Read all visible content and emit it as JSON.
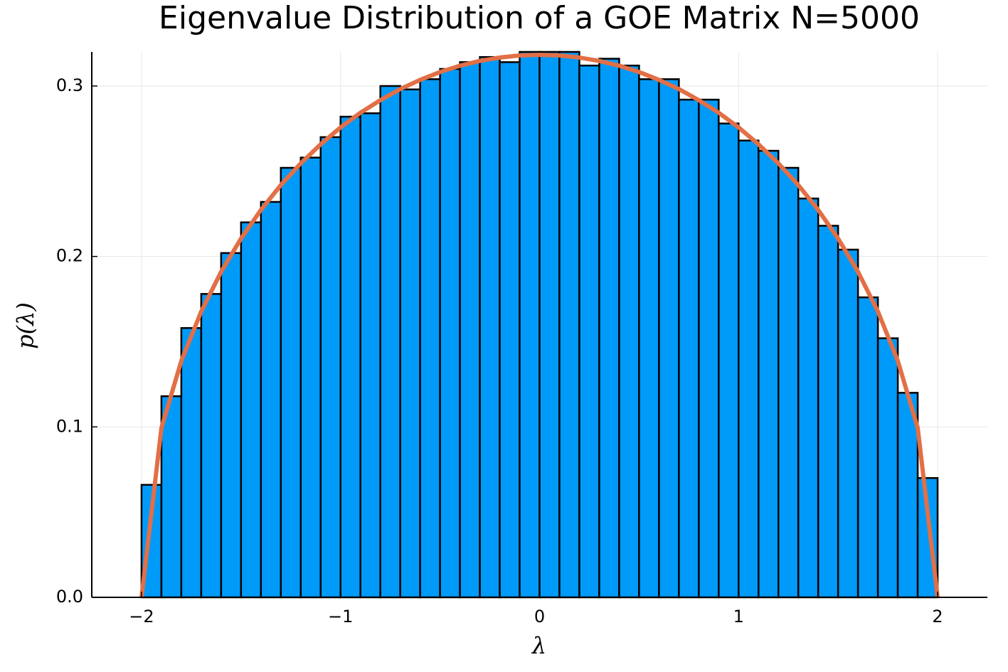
{
  "chart_data": {
    "type": "histogram",
    "title": "Eigenvalue Distribution of a GOE Matrix N=5000",
    "x_label": "λ",
    "y_label": "p(λ)",
    "bins": [
      -2,
      -1.9,
      -1.8,
      -1.7,
      -1.6,
      -1.5,
      -1.4,
      -1.3,
      -1.2,
      -1.1,
      -1,
      -0.9,
      -0.8,
      -0.7,
      -0.6,
      -0.5,
      -0.4,
      -0.3,
      -0.2,
      -0.1,
      0,
      0.1,
      0.2,
      0.3,
      0.4,
      0.5,
      0.6,
      0.7,
      0.8,
      0.9,
      1,
      1.1,
      1.2,
      1.3,
      1.4,
      1.5,
      1.6,
      1.7,
      1.8,
      1.9,
      2
    ],
    "values": [
      0.066,
      0.118,
      0.158,
      0.178,
      0.202,
      0.22,
      0.232,
      0.252,
      0.258,
      0.27,
      0.282,
      0.284,
      0.3,
      0.298,
      0.304,
      0.31,
      0.314,
      0.317,
      0.314,
      0.32,
      0.32,
      0.32,
      0.312,
      0.316,
      0.312,
      0.304,
      0.304,
      0.292,
      0.292,
      0.278,
      0.268,
      0.262,
      0.252,
      0.234,
      0.218,
      0.204,
      0.176,
      0.152,
      0.12,
      0.07
    ],
    "color": "#009af9",
    "line": {
      "color": "#e26f46",
      "x": [
        -2,
        -1.9,
        -1.8,
        -1.7,
        -1.6,
        -1.5,
        -1.4,
        -1.3,
        -1.2,
        -1.1,
        -1,
        -0.9,
        -0.8,
        -0.7,
        -0.6,
        -0.5,
        -0.4,
        -0.3,
        -0.2,
        -0.1,
        0,
        0.1,
        0.2,
        0.3,
        0.4,
        0.5,
        0.6,
        0.7,
        0.8,
        0.9,
        1,
        1.1,
        1.2,
        1.3,
        1.4,
        1.5,
        1.6,
        1.7,
        1.8,
        1.9,
        2
      ],
      "values": [
        0,
        0.0994,
        0.1387,
        0.1677,
        0.191,
        0.2105,
        0.2273,
        0.2419,
        0.2546,
        0.2658,
        0.2757,
        0.2843,
        0.2917,
        0.2982,
        0.3036,
        0.3082,
        0.3119,
        0.3147,
        0.3167,
        0.3179,
        0.3183,
        0.3179,
        0.3167,
        0.3147,
        0.3119,
        0.3082,
        0.3036,
        0.2982,
        0.2917,
        0.2843,
        0.2757,
        0.2658,
        0.2546,
        0.2419,
        0.2273,
        0.2105,
        0.191,
        0.1677,
        0.1387,
        0.0994,
        0
      ]
    },
    "xlim": [
      -2.25,
      2.25
    ],
    "ylim": [
      0,
      0.32
    ],
    "xticks": [
      {
        "value": -2,
        "label": "−2"
      },
      {
        "value": -1,
        "label": "−1"
      },
      0,
      1,
      2
    ],
    "yticks": [
      {
        "value": 0,
        "label": "0.0"
      },
      0.1,
      0.2,
      0.3
    ],
    "grid": true
  }
}
